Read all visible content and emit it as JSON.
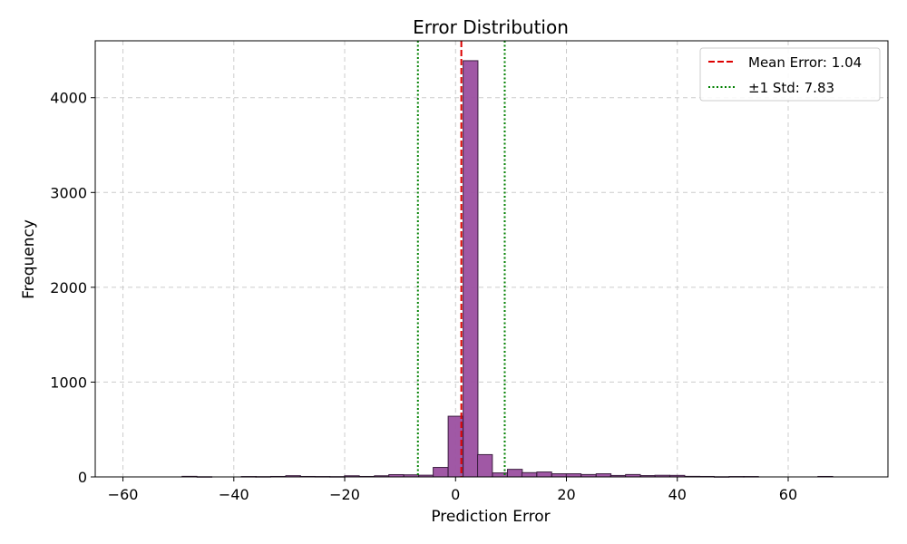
{
  "chart_data": {
    "type": "bar",
    "title": "Error Distribution",
    "xlabel": "Prediction Error",
    "ylabel": "Frequency",
    "xlim": [
      -65,
      78
    ],
    "ylim": [
      0,
      4600
    ],
    "xticks": [
      -60,
      -40,
      -20,
      0,
      20,
      40,
      60
    ],
    "xtick_labels": [
      "−60",
      "−40",
      "−20",
      "0",
      "20",
      "40",
      "60"
    ],
    "yticks": [
      0,
      1000,
      2000,
      3000,
      4000
    ],
    "ytick_labels": [
      "0",
      "1000",
      "2000",
      "3000",
      "4000"
    ],
    "grid": true,
    "bar_color": "#9b4fa0",
    "bar_edge_color": "#3c1e40",
    "bin_width": 2.67,
    "bins": [
      {
        "x": -48.0,
        "count": 6
      },
      {
        "x": -45.3,
        "count": 2
      },
      {
        "x": -37.3,
        "count": 4
      },
      {
        "x": -34.7,
        "count": 3
      },
      {
        "x": -32.0,
        "count": 5
      },
      {
        "x": -29.3,
        "count": 13
      },
      {
        "x": -26.7,
        "count": 5
      },
      {
        "x": -24.0,
        "count": 4
      },
      {
        "x": -21.3,
        "count": 3
      },
      {
        "x": -18.7,
        "count": 12
      },
      {
        "x": -16.0,
        "count": 5
      },
      {
        "x": -13.3,
        "count": 12
      },
      {
        "x": -10.7,
        "count": 24
      },
      {
        "x": -8.0,
        "count": 22
      },
      {
        "x": -5.3,
        "count": 18
      },
      {
        "x": -2.7,
        "count": 100
      },
      {
        "x": 0.0,
        "count": 640
      },
      {
        "x": 2.7,
        "count": 4390
      },
      {
        "x": 5.3,
        "count": 235
      },
      {
        "x": 8.0,
        "count": 42
      },
      {
        "x": 10.7,
        "count": 80
      },
      {
        "x": 13.3,
        "count": 45
      },
      {
        "x": 16.0,
        "count": 52
      },
      {
        "x": 18.7,
        "count": 33
      },
      {
        "x": 21.3,
        "count": 33
      },
      {
        "x": 24.0,
        "count": 25
      },
      {
        "x": 26.7,
        "count": 33
      },
      {
        "x": 29.3,
        "count": 15
      },
      {
        "x": 32.0,
        "count": 25
      },
      {
        "x": 34.7,
        "count": 14
      },
      {
        "x": 37.3,
        "count": 17
      },
      {
        "x": 40.0,
        "count": 16
      },
      {
        "x": 42.7,
        "count": 6
      },
      {
        "x": 45.3,
        "count": 5
      },
      {
        "x": 48.0,
        "count": 2
      },
      {
        "x": 50.7,
        "count": 4
      },
      {
        "x": 53.3,
        "count": 4
      },
      {
        "x": 66.7,
        "count": 5
      }
    ],
    "reference_lines": [
      {
        "label": "Mean Error: 1.04",
        "x": 1.04,
        "color": "#dd0000",
        "style": "dashed"
      },
      {
        "label": "±1 Std: 7.83",
        "x": -6.79,
        "x2": 8.87,
        "color": "#008000",
        "style": "dotted"
      }
    ],
    "legend_position": "top-right"
  }
}
